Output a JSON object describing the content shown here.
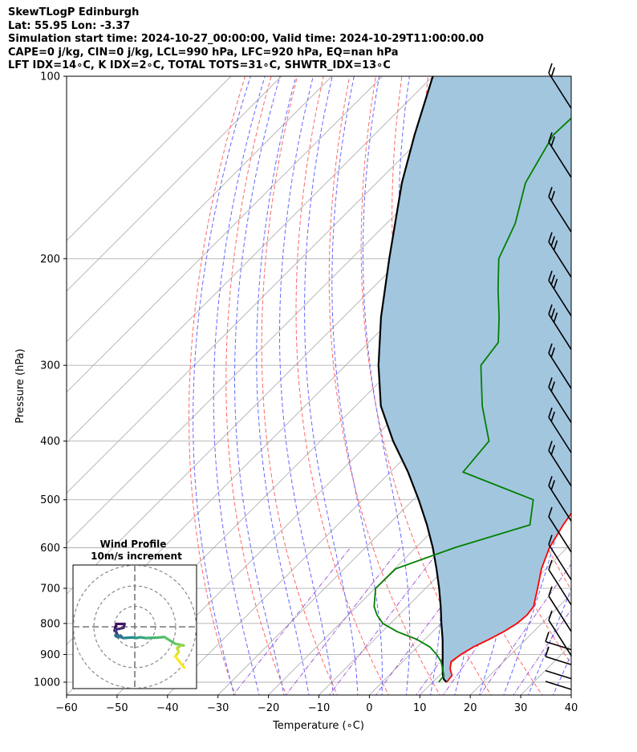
{
  "title_lines": [
    "SkewTLogP Edinburgh",
    "Lat: 55.95   Lon: -3.37",
    "Simulation start time: 2024-10-27_00:00:00, Valid time: 2024-10-29T11:00:00.00",
    "CAPE=0 j/kg, CIN=0 j/kg, LCL=990 hPa, LFC=920 hPa, EQ=nan hPa",
    "LFT IDX=14∘C, K IDX=2∘C, TOTAL TOTS=31∘C, SHWTR_IDX=13∘C"
  ],
  "chart_data": {
    "type": "skew-t log-p",
    "xlabel": "Temperature (∘C)",
    "ylabel": "Pressure (hPa)",
    "xlim": [
      -60,
      40
    ],
    "ylim": [
      1050,
      100
    ],
    "x_ticks": [
      -60,
      -50,
      -40,
      -30,
      -20,
      -10,
      0,
      10,
      20,
      30,
      40
    ],
    "x_tick_labels": [
      "−60",
      "−50",
      "−40",
      "−30",
      "−20",
      "−10",
      "0",
      "10",
      "20",
      "30",
      "40"
    ],
    "y_ticks": [
      1000,
      900,
      800,
      700,
      600,
      500,
      400,
      300,
      200,
      100
    ],
    "y_tick_labels": [
      "1000",
      "900",
      "800",
      "700",
      "600",
      "500",
      "400",
      "300",
      "200",
      "100"
    ],
    "grid": true,
    "colors": {
      "temperature": "#ff0000",
      "dewpoint": "#008000",
      "parcel": "#000000",
      "cape_fill": "#a3c6df",
      "isotherm": "#b0b0b0",
      "dry_adiabat": "#ff6666",
      "moist_adiabat": "#6666ff",
      "mixing_ratio": "#9b4fd0"
    },
    "temperature_profile": {
      "pressure": [
        1000,
        975,
        950,
        925,
        900,
        875,
        850,
        825,
        800,
        775,
        750,
        700,
        650,
        600,
        550,
        500,
        450,
        400,
        350,
        300,
        275,
        250,
        225,
        200,
        175,
        150,
        125,
        110,
        100
      ],
      "temperature": [
        12.8,
        12.5,
        10.8,
        9.6,
        10.1,
        11.1,
        12.7,
        14.1,
        15.1,
        15.4,
        15.0,
        12.2,
        9.1,
        6.5,
        4.7,
        3.2,
        1.0,
        -3.5,
        -11.5,
        -18.5,
        -22.5,
        -26.8,
        -31.3,
        -34.8,
        -38.0,
        -42.5,
        -47.0,
        -50.5,
        -52.0
      ]
    },
    "dewpoint_profile": {
      "pressure": [
        1000,
        975,
        950,
        925,
        900,
        875,
        850,
        825,
        800,
        775,
        750,
        700,
        650,
        600,
        550,
        500,
        450,
        400,
        350,
        300,
        275,
        250,
        225,
        200,
        175,
        150,
        125,
        110,
        100
      ],
      "dewpoint": [
        11.2,
        10.9,
        9.3,
        7.6,
        5.3,
        2.5,
        -1.6,
        -7.1,
        -11.5,
        -14.3,
        -16.6,
        -19.9,
        -19.8,
        -12.3,
        -1.9,
        -6.2,
        -25.6,
        -26.6,
        -34.9,
        -43.2,
        -44.3,
        -49.1,
        -54.8,
        -60.8,
        -64.5,
        -70.5,
        -74.5,
        -74.0,
        -74.5
      ]
    },
    "parcel_profile": {
      "pressure": [
        1000,
        990,
        975,
        950,
        925,
        900,
        850,
        800,
        750,
        700,
        650,
        600,
        550,
        500,
        450,
        400,
        350,
        300,
        250,
        200,
        150,
        125,
        100
      ],
      "temperature": [
        12.8,
        11.7,
        10.7,
        9.3,
        7.9,
        6.5,
        3.5,
        0.1,
        -3.4,
        -7.3,
        -11.7,
        -16.6,
        -22.3,
        -28.9,
        -36.5,
        -45.6,
        -55.0,
        -63.5,
        -72.5,
        -82.5,
        -95.0,
        -102.0,
        -110.0
      ]
    },
    "wind_barbs": {
      "pressure": [
        100,
        130,
        160,
        190,
        220,
        250,
        290,
        330,
        370,
        420,
        480,
        540,
        600,
        660,
        730,
        800,
        860,
        910,
        960,
        1000
      ],
      "shape": [
        "L2",
        "L2",
        "L2",
        "L3",
        "L3",
        "L3",
        "L2",
        "L2",
        "L2",
        "L2",
        "L2",
        "L1",
        "L1",
        "L1",
        "L1",
        "L1",
        "S1",
        "S1",
        "S0",
        "S0"
      ]
    },
    "hodograph": {
      "title": "Wind Profile",
      "subtitle": "10m/s increment",
      "rings_ms": [
        10,
        20,
        30
      ],
      "u": [
        -9.9,
        -9.0,
        -5.0,
        -5.5,
        -9.5,
        -8.0,
        -6.5,
        -7.0,
        -9.0,
        -9.5,
        -5.5,
        -1.2,
        0.6,
        2.6,
        5.5,
        10.7,
        14.5,
        19.8,
        23.9,
        22.5,
        20.7,
        21.5,
        19.8,
        24.2
      ],
      "v": [
        -1.9,
        1.4,
        1.4,
        -0.5,
        -1.4,
        -5.0,
        -4.8,
        -4.3,
        -4.8,
        -4.2,
        -5.5,
        -5.2,
        -5.5,
        -5.1,
        -5.5,
        -5.3,
        -5.0,
        -8.3,
        -9.1,
        -9.1,
        -10.4,
        -12.4,
        -14.4,
        -20.0
      ]
    }
  }
}
